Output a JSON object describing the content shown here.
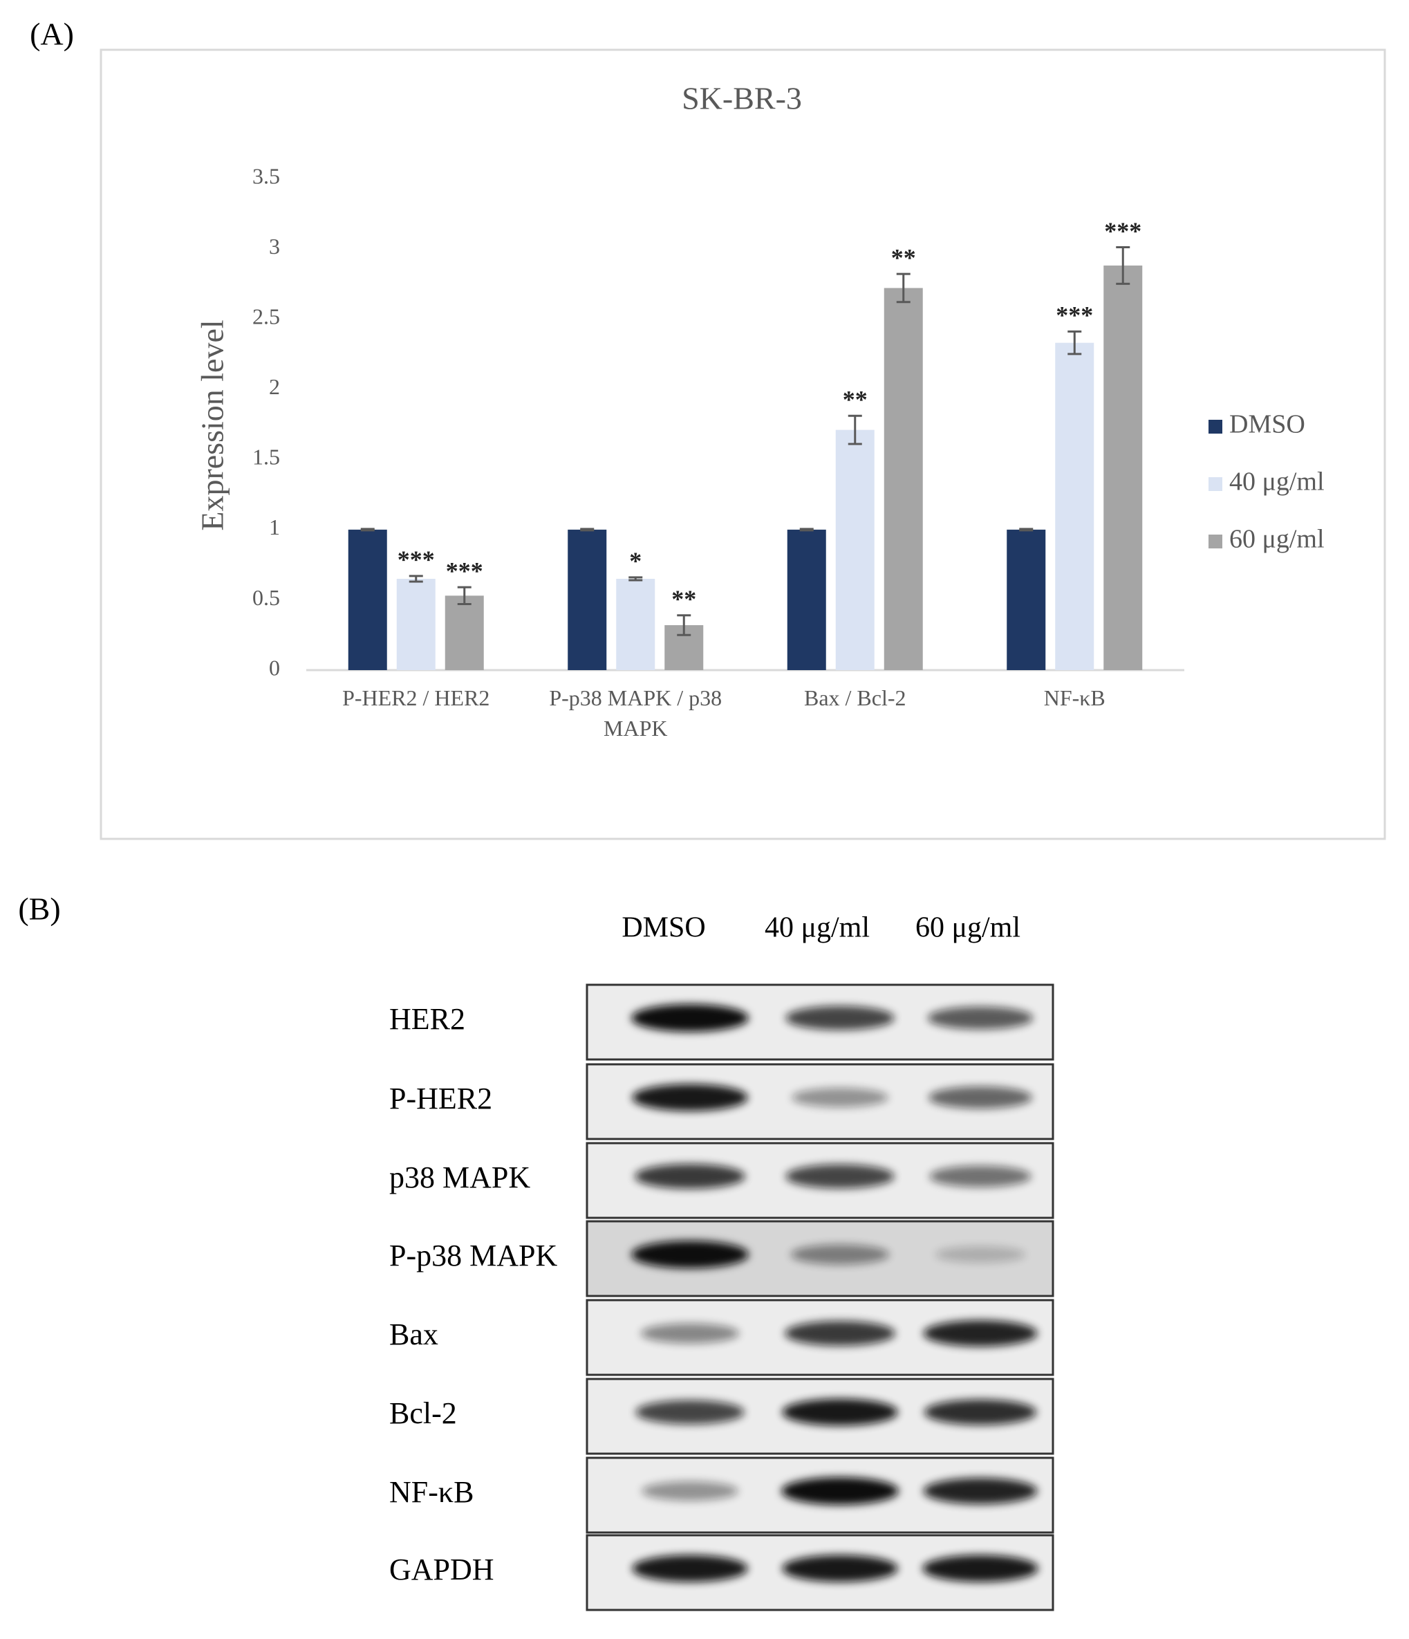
{
  "panel_a_label": "(A)",
  "chart_data": {
    "type": "bar",
    "title": "SK-BR-3",
    "y_label": "Expression level",
    "categories": [
      "P-HER2 / HER2",
      "P-p38 MAPK / p38 MAPK",
      "Bax / Bcl-2",
      "NF-κB"
    ],
    "series": [
      {
        "name": "DMSO",
        "color": "#1f3864",
        "values": [
          1,
          1,
          1,
          1
        ],
        "errors": [
          0.005,
          0.005,
          0.005,
          0.005
        ]
      },
      {
        "name": "40 μg/ml",
        "color": "#dae3f3",
        "values": [
          0.65,
          0.65,
          1.71,
          2.33
        ],
        "errors": [
          0.02,
          0.01,
          0.1,
          0.08
        ],
        "annotations": [
          "***",
          "*",
          "**",
          "***"
        ]
      },
      {
        "name": "60 μg/ml",
        "color": "#a5a5a5",
        "values": [
          0.53,
          0.32,
          2.72,
          2.88
        ],
        "errors": [
          0.06,
          0.07,
          0.1,
          0.13
        ],
        "annotations": [
          "***",
          "**",
          "**",
          "***"
        ]
      }
    ],
    "ylim": [
      0,
      3.5
    ],
    "yticks": [
      0,
      0.5,
      1,
      1.5,
      2,
      2.5,
      3,
      3.5
    ],
    "grid": false,
    "legend": "right"
  },
  "panel_b_label": "(B)",
  "blot": {
    "columns": [
      "DMSO",
      "40 μg/ml",
      "60 μg/ml"
    ],
    "rows": [
      "HER2",
      "P-HER2",
      "p38 MAPK",
      "P-p38 MAPK",
      "Bax",
      "Bcl-2",
      "NF-κB",
      "GAPDH"
    ]
  }
}
